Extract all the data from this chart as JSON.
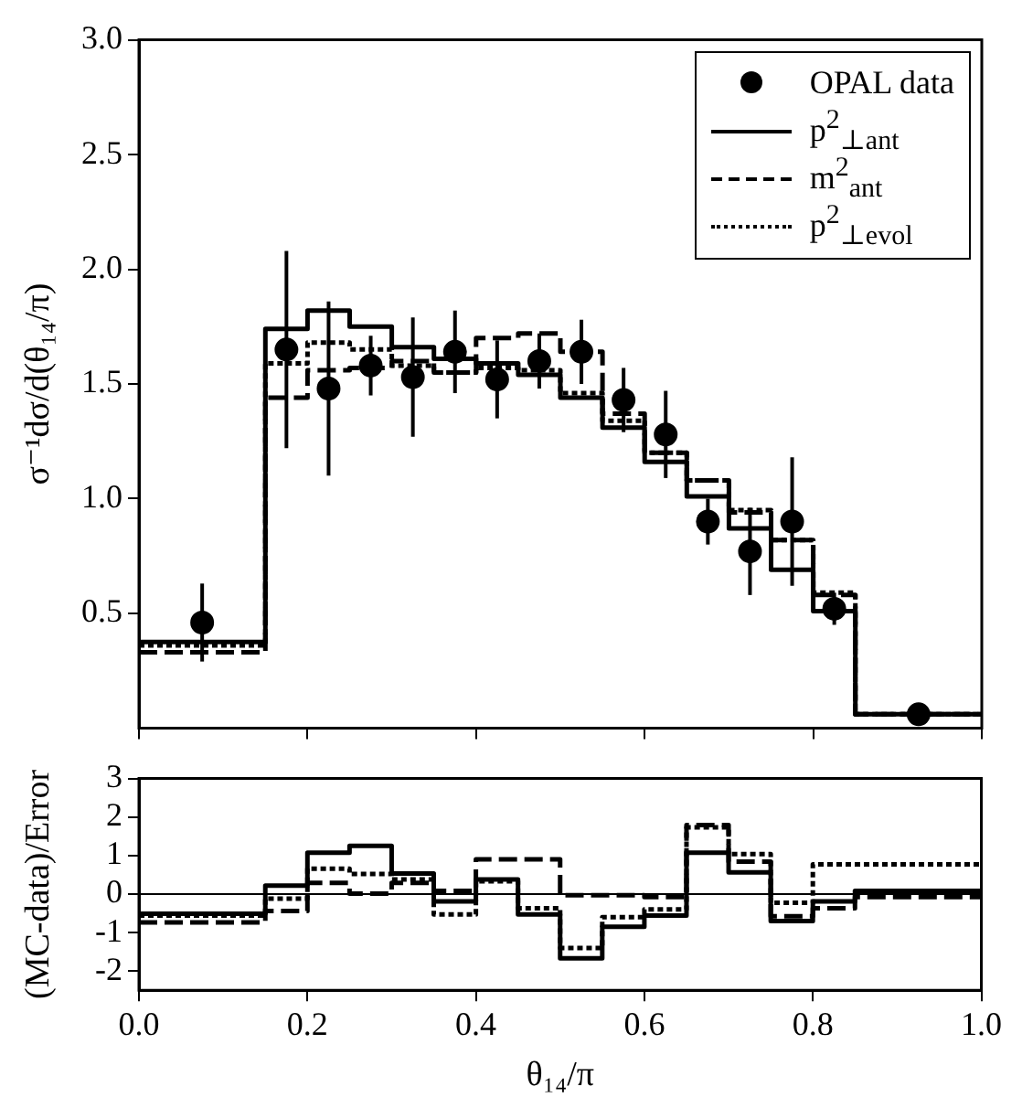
{
  "chart_data": [
    {
      "type": "step",
      "ylabel": "σ⁻¹dσ/d(θ₁₄/π)",
      "xlim": [
        0,
        1
      ],
      "xticks": [
        {
          "value": 0,
          "label": null
        },
        {
          "value": 0.2,
          "label": null
        },
        {
          "value": 0.4,
          "label": null
        },
        {
          "value": 0.6,
          "label": null
        },
        {
          "value": 0.8,
          "label": null
        },
        {
          "value": 1,
          "label": null
        }
      ],
      "ylim": [
        0,
        3
      ],
      "yticks": [
        0.5,
        {
          "value": 1,
          "label": "1.0"
        },
        1.5,
        {
          "value": 2,
          "label": "2.0"
        },
        2.5,
        {
          "value": 3,
          "label": "3.0"
        }
      ],
      "tick_labels": "y",
      "grid": false,
      "legend": "top right",
      "x": [
        0,
        0.15,
        0.2,
        0.25,
        0.3,
        0.35,
        0.4,
        0.45,
        0.5,
        0.55,
        0.6,
        0.65,
        0.7,
        0.75,
        0.8,
        0.85,
        1
      ],
      "series": [
        {
          "name": "OPAL data",
          "type": "scatter",
          "color": "#000000",
          "marker": "circle",
          "x": [
            0.075,
            0.175,
            0.225,
            0.275,
            0.325,
            0.375,
            0.425,
            0.475,
            0.525,
            0.575,
            0.625,
            0.675,
            0.725,
            0.775,
            0.825,
            0.925
          ],
          "values": [
            0.46,
            1.65,
            1.48,
            1.58,
            1.53,
            1.64,
            1.52,
            1.6,
            1.64,
            1.43,
            1.28,
            0.9,
            0.77,
            0.9,
            0.52,
            0.06
          ],
          "errors": [
            0.17,
            0.43,
            0.38,
            0.13,
            0.26,
            0.18,
            0.17,
            0.12,
            0.14,
            0.14,
            0.19,
            0.1,
            0.19,
            0.28,
            0.07,
            null
          ]
        },
        {
          "name": "p$^{2}$$_{⊥ant}$",
          "color": "#000000",
          "line_style": "solid",
          "values": [
            0.375,
            1.74,
            1.82,
            1.75,
            1.66,
            1.61,
            1.59,
            1.54,
            1.44,
            1.31,
            1.16,
            1.01,
            0.87,
            0.69,
            0.51,
            0.06,
            0.06
          ]
        },
        {
          "name": "m$^{2}$$_{ant}$",
          "color": "#000000",
          "line_style": "dashed",
          "values": [
            0.33,
            1.44,
            1.56,
            1.57,
            1.6,
            1.55,
            1.7,
            1.72,
            1.64,
            1.37,
            1.2,
            1.08,
            0.94,
            0.82,
            0.58,
            0.06,
            0.06
          ]
        },
        {
          "name": "p$^{2}$$_{⊥evol}$",
          "color": "#000000",
          "line_style": "dotted",
          "values": [
            0.36,
            1.59,
            1.68,
            1.65,
            1.58,
            1.55,
            1.57,
            1.56,
            1.46,
            1.34,
            1.2,
            1.08,
            0.95,
            0.82,
            0.59,
            0.06,
            0.06
          ]
        }
      ]
    },
    {
      "type": "step",
      "xlabel": "θ₁₄/π",
      "ylabel": "(MC-data)/Error",
      "xlim": [
        0,
        1
      ],
      "xticks": [
        {
          "value": 0,
          "label": "0.0"
        },
        0.2,
        0.4,
        0.6,
        0.8,
        {
          "value": 1,
          "label": "1.0"
        }
      ],
      "ylim": [
        -2.5,
        3
      ],
      "yticks": [
        -2,
        -1,
        0,
        1,
        2,
        3
      ],
      "grid": false,
      "x": [
        0,
        0.15,
        0.2,
        0.25,
        0.3,
        0.35,
        0.4,
        0.45,
        0.5,
        0.55,
        0.6,
        0.65,
        0.7,
        0.75,
        0.8,
        0.85,
        1
      ],
      "ref_lines": [
        {
          "axis": "y",
          "value": 0,
          "color": "#000000"
        }
      ],
      "series": [
        {
          "color": "#000000",
          "line_style": "solid",
          "values": [
            -0.51,
            0.22,
            1.07,
            1.25,
            0.53,
            -0.19,
            0.38,
            -0.53,
            -1.67,
            -0.85,
            -0.56,
            1.07,
            0.56,
            -0.7,
            -0.19,
            0.08,
            0.08
          ]
        },
        {
          "color": "#000000",
          "line_style": "dashed",
          "values": [
            -0.74,
            -0.44,
            0.29,
            0.01,
            0.29,
            0.08,
            0.9,
            0.9,
            -0.03,
            -0.03,
            -0.08,
            1.79,
            0.84,
            -0.58,
            -0.37,
            -0.08,
            -0.08
          ]
        },
        {
          "color": "#000000",
          "line_style": "dotted",
          "values": [
            -0.56,
            -0.12,
            0.66,
            0.52,
            0.38,
            -0.53,
            0.33,
            -0.37,
            -1.4,
            -0.6,
            -0.4,
            1.73,
            1.04,
            -0.23,
            0.77,
            0.77,
            0.77
          ]
        }
      ]
    }
  ]
}
